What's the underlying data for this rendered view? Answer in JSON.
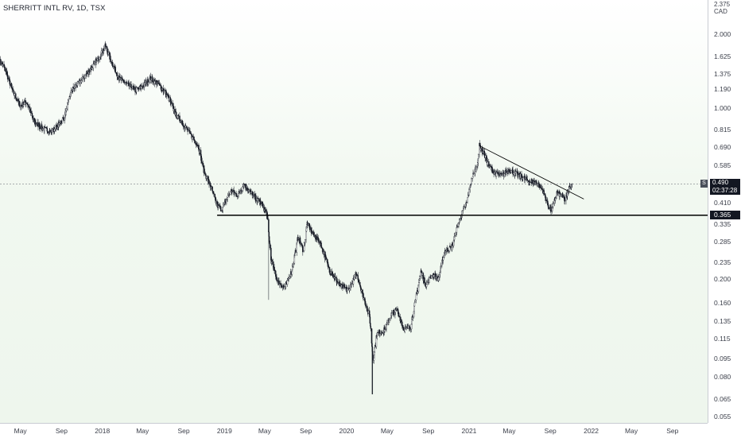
{
  "header": {
    "symbol": "SHERRITT INTL RV",
    "interval": "1D",
    "exchange": "TSX"
  },
  "currency_label": "CAD",
  "current_price": "0.490",
  "countdown": "02:37:28",
  "series_badge": "S",
  "support_level_label": "0.365",
  "colors": {
    "candles": "#131722",
    "price_line": "#5a5f6b",
    "background_tint": "#eef6ed"
  },
  "chart_data": {
    "type": "candlestick",
    "scale": "log",
    "ylim": [
      0.052,
      2.75
    ],
    "xlim": [
      "2017-03-01",
      "2022-12-15"
    ],
    "y_ticks": [
      "2.375",
      "2.000",
      "1.625",
      "1.375",
      "1.190",
      "1.000",
      "0.815",
      "0.690",
      "0.585",
      "0.410",
      "0.335",
      "0.285",
      "0.235",
      "0.200",
      "0.160",
      "0.135",
      "0.115",
      "0.095",
      "0.080",
      "0.065",
      "0.055"
    ],
    "x_ticks": [
      {
        "label": "May",
        "date": "2017-05-01"
      },
      {
        "label": "Sep",
        "date": "2017-09-01"
      },
      {
        "label": "2018",
        "date": "2018-01-01"
      },
      {
        "label": "May",
        "date": "2018-05-01"
      },
      {
        "label": "Sep",
        "date": "2018-09-01"
      },
      {
        "label": "2019",
        "date": "2019-01-01"
      },
      {
        "label": "May",
        "date": "2019-05-01"
      },
      {
        "label": "Sep",
        "date": "2019-09-01"
      },
      {
        "label": "2020",
        "date": "2020-01-01"
      },
      {
        "label": "May",
        "date": "2020-05-01"
      },
      {
        "label": "Sep",
        "date": "2020-09-01"
      },
      {
        "label": "2021",
        "date": "2021-01-01"
      },
      {
        "label": "May",
        "date": "2021-05-01"
      },
      {
        "label": "Sep",
        "date": "2021-09-01"
      },
      {
        "label": "2022",
        "date": "2022-01-01"
      },
      {
        "label": "May",
        "date": "2022-05-01"
      },
      {
        "label": "Sep",
        "date": "2022-09-01"
      }
    ],
    "anchors": [
      [
        "2017-03-01",
        1.55
      ],
      [
        "2017-03-15",
        1.45
      ],
      [
        "2017-04-10",
        1.15
      ],
      [
        "2017-05-01",
        1.02
      ],
      [
        "2017-05-20",
        1.06
      ],
      [
        "2017-06-10",
        0.88
      ],
      [
        "2017-07-10",
        0.82
      ],
      [
        "2017-08-01",
        0.8
      ],
      [
        "2017-08-20",
        0.84
      ],
      [
        "2017-09-10",
        0.92
      ],
      [
        "2017-10-01",
        1.18
      ],
      [
        "2017-11-01",
        1.3
      ],
      [
        "2017-12-15",
        1.55
      ],
      [
        "2018-01-10",
        1.78
      ],
      [
        "2018-01-25",
        1.58
      ],
      [
        "2018-02-20",
        1.32
      ],
      [
        "2018-03-15",
        1.25
      ],
      [
        "2018-04-10",
        1.18
      ],
      [
        "2018-05-01",
        1.22
      ],
      [
        "2018-05-25",
        1.32
      ],
      [
        "2018-06-20",
        1.24
      ],
      [
        "2018-07-15",
        1.12
      ],
      [
        "2018-08-10",
        0.93
      ],
      [
        "2018-08-25",
        0.88
      ],
      [
        "2018-09-15",
        0.8
      ],
      [
        "2018-10-15",
        0.7
      ],
      [
        "2018-11-01",
        0.55
      ],
      [
        "2018-11-20",
        0.48
      ],
      [
        "2018-12-10",
        0.4
      ],
      [
        "2018-12-24",
        0.385
      ],
      [
        "2019-01-20",
        0.46
      ],
      [
        "2019-02-10",
        0.44
      ],
      [
        "2019-03-01",
        0.49
      ],
      [
        "2019-03-25",
        0.44
      ],
      [
        "2019-04-20",
        0.41
      ],
      [
        "2019-05-08",
        0.37
      ],
      [
        "2019-05-20",
        0.24
      ],
      [
        "2019-06-10",
        0.195
      ],
      [
        "2019-07-01",
        0.185
      ],
      [
        "2019-07-20",
        0.215
      ],
      [
        "2019-08-10",
        0.3
      ],
      [
        "2019-08-25",
        0.26
      ],
      [
        "2019-09-05",
        0.34
      ],
      [
        "2019-09-20",
        0.31
      ],
      [
        "2019-10-15",
        0.28
      ],
      [
        "2019-11-10",
        0.22
      ],
      [
        "2019-12-10",
        0.19
      ],
      [
        "2020-01-05",
        0.18
      ],
      [
        "2020-02-01",
        0.21
      ],
      [
        "2020-02-20",
        0.17
      ],
      [
        "2020-03-10",
        0.14
      ],
      [
        "2020-03-20",
        0.095
      ],
      [
        "2020-04-01",
        0.12
      ],
      [
        "2020-04-25",
        0.125
      ],
      [
        "2020-05-15",
        0.145
      ],
      [
        "2020-06-01",
        0.15
      ],
      [
        "2020-06-20",
        0.125
      ],
      [
        "2020-07-10",
        0.128
      ],
      [
        "2020-07-25",
        0.165
      ],
      [
        "2020-08-10",
        0.215
      ],
      [
        "2020-08-25",
        0.19
      ],
      [
        "2020-09-15",
        0.21
      ],
      [
        "2020-10-01",
        0.2
      ],
      [
        "2020-10-20",
        0.26
      ],
      [
        "2020-11-10",
        0.27
      ],
      [
        "2020-11-25",
        0.32
      ],
      [
        "2020-12-10",
        0.37
      ],
      [
        "2020-12-25",
        0.41
      ],
      [
        "2021-01-10",
        0.52
      ],
      [
        "2021-01-25",
        0.58
      ],
      [
        "2021-02-01",
        0.7
      ],
      [
        "2021-02-15",
        0.65
      ],
      [
        "2021-03-01",
        0.58
      ],
      [
        "2021-03-20",
        0.54
      ],
      [
        "2021-04-10",
        0.53
      ],
      [
        "2021-05-01",
        0.56
      ],
      [
        "2021-05-20",
        0.54
      ],
      [
        "2021-06-10",
        0.52
      ],
      [
        "2021-07-01",
        0.5
      ],
      [
        "2021-07-20",
        0.5
      ],
      [
        "2021-08-10",
        0.46
      ],
      [
        "2021-08-25",
        0.4
      ],
      [
        "2021-09-05",
        0.38
      ],
      [
        "2021-09-20",
        0.45
      ],
      [
        "2021-10-05",
        0.44
      ],
      [
        "2021-10-15",
        0.42
      ],
      [
        "2021-10-28",
        0.47
      ],
      [
        "2021-11-05",
        0.49
      ]
    ],
    "events": [
      {
        "date": "2019-05-12",
        "low": 0.165
      },
      {
        "date": "2020-03-18",
        "low": 0.068
      }
    ],
    "support_line": {
      "value": 0.365,
      "from": "2018-12-10",
      "to": "2022-12-15"
    },
    "trend_line": {
      "from": [
        "2021-02-01",
        0.7
      ],
      "to": [
        "2021-12-10",
        0.425
      ]
    },
    "last_price_line": 0.49
  }
}
